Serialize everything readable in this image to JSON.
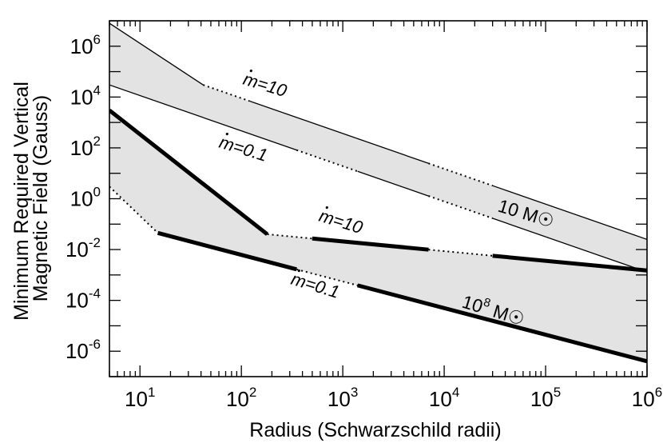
{
  "chart_data": {
    "type": "line",
    "xlabel": "Radius (Schwarzschild radii)",
    "ylabel_lines": [
      "Minimum Required Vertical",
      "Magnetic Field (Gauss)"
    ],
    "xscale": "log",
    "yscale": "log",
    "xlim": [
      5,
      1000000
    ],
    "ylim": [
      1e-07,
      10000000.0
    ],
    "x_ticks": [
      {
        "value": 10,
        "base": "10",
        "exp": "1"
      },
      {
        "value": 100,
        "base": "10",
        "exp": "2"
      },
      {
        "value": 1000,
        "base": "10",
        "exp": "3"
      },
      {
        "value": 10000,
        "base": "10",
        "exp": "4"
      },
      {
        "value": 100000,
        "base": "10",
        "exp": "5"
      },
      {
        "value": 1000000,
        "base": "10",
        "exp": "6"
      }
    ],
    "y_ticks": [
      {
        "value": 1e-06,
        "base": "10",
        "exp": "-6"
      },
      {
        "value": 0.0001,
        "base": "10",
        "exp": "-4"
      },
      {
        "value": 0.01,
        "base": "10",
        "exp": "-2"
      },
      {
        "value": 1,
        "base": "10",
        "exp": "0"
      },
      {
        "value": 100,
        "base": "10",
        "exp": "2"
      },
      {
        "value": 10000,
        "base": "10",
        "exp": "4"
      },
      {
        "value": 1000000,
        "base": "10",
        "exp": "6"
      }
    ],
    "grid": false,
    "shaded_bands": [
      {
        "name": "10 M☉",
        "upper": [
          [
            5,
            8000000
          ],
          [
            42,
            30000
          ],
          [
            1000000,
            0.025
          ]
        ],
        "lower": [
          [
            5,
            30000
          ],
          [
            1000000,
            0.0013
          ]
        ]
      },
      {
        "name": "10⁸ M☉",
        "upper": [
          [
            5,
            3000
          ],
          [
            180,
            0.04
          ],
          [
            1000000,
            0.0015
          ]
        ],
        "lower": [
          [
            5,
            3
          ],
          [
            15,
            0.045
          ],
          [
            1000000,
            4e-07
          ]
        ]
      }
    ],
    "series": [
      {
        "name": "ṁ=10",
        "group": "10 M☉",
        "weight": "thin",
        "points": [
          [
            5,
            8000000
          ],
          [
            42,
            30000
          ],
          [
            1000000,
            0.025
          ]
        ],
        "dotted_ranges": [
          [
            42,
            120
          ],
          [
            7000,
            30000
          ]
        ]
      },
      {
        "name": "ṁ=0.1",
        "group": "10 M☉",
        "weight": "thin",
        "points": [
          [
            5,
            30000
          ],
          [
            1000000,
            0.0013
          ]
        ],
        "dotted_ranges": [
          [
            350,
            1400
          ],
          [
            7000,
            30000
          ]
        ]
      },
      {
        "name": "ṁ=10",
        "group": "10⁸ M☉",
        "weight": "thick",
        "points": [
          [
            5,
            3000
          ],
          [
            180,
            0.04
          ],
          [
            1000000,
            0.0015
          ]
        ],
        "dotted_ranges": [
          [
            180,
            500
          ],
          [
            7000,
            30000
          ]
        ]
      },
      {
        "name": "ṁ=0.1",
        "group": "10⁸ M☉",
        "weight": "thick",
        "points": [
          [
            5,
            3
          ],
          [
            15,
            0.045
          ],
          [
            1000000,
            4e-07
          ]
        ],
        "dotted_ranges": [
          [
            5,
            15
          ],
          [
            350,
            1400
          ]
        ]
      }
    ],
    "annotations": [
      {
        "id": "mdot10-a",
        "prefix": "m",
        "text": "=10"
      },
      {
        "id": "mdot01-a",
        "prefix": "m",
        "text": "=0.1"
      },
      {
        "id": "mdot10-b",
        "prefix": "m",
        "text": "=10"
      },
      {
        "id": "mdot01-b",
        "prefix": "m",
        "text": "=0.1"
      },
      {
        "id": "mass-small",
        "base": "10 M",
        "sup": "",
        "sun": "☉"
      },
      {
        "id": "mass-large",
        "base": "10",
        "sup": "8",
        "mid": " M",
        "sun": "☉"
      }
    ]
  }
}
